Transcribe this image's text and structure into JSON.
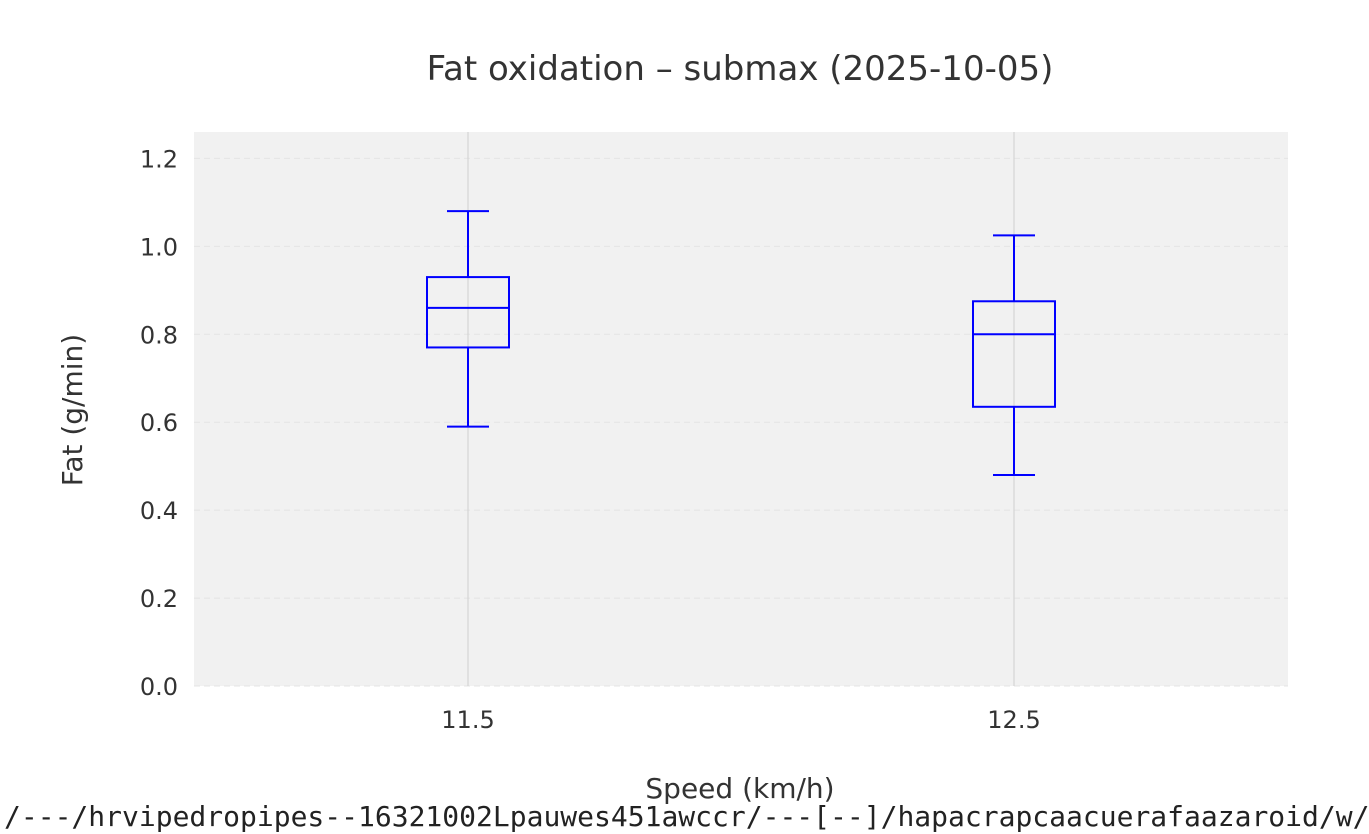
{
  "chart_data": {
    "type": "box",
    "title": "Fat oxidation – submax (2025-10-05)",
    "xlabel": "Speed (km/h)",
    "ylabel": "Fat (g/min)",
    "ylim": [
      0,
      1.26
    ],
    "yticks": [
      0.0,
      0.2,
      0.4,
      0.6,
      0.8,
      1.0,
      1.2
    ],
    "ytick_labels": [
      "0.0",
      "0.2",
      "0.4",
      "0.6",
      "0.8",
      "1.0",
      "1.2"
    ],
    "categories": [
      "11.5",
      "12.5"
    ],
    "boxes": [
      {
        "category": "11.5",
        "whisker_low": 0.59,
        "q1": 0.77,
        "median": 0.86,
        "q3": 0.93,
        "whisker_high": 1.08
      },
      {
        "category": "12.5",
        "whisker_low": 0.48,
        "q1": 0.635,
        "median": 0.8,
        "q3": 0.875,
        "whisker_high": 1.025
      }
    ],
    "grid": true,
    "colors": {
      "box": "#0000ff",
      "plot_background": "#f1f1f1",
      "grid_y": "#e4e4e4",
      "grid_x": "#d4d4d4"
    }
  },
  "footer": {
    "text": "/---/hrvipedropipes--16321002Lpauwes451awccr/---[--]/hapacrapcaacuerafaazaroid/w/"
  }
}
